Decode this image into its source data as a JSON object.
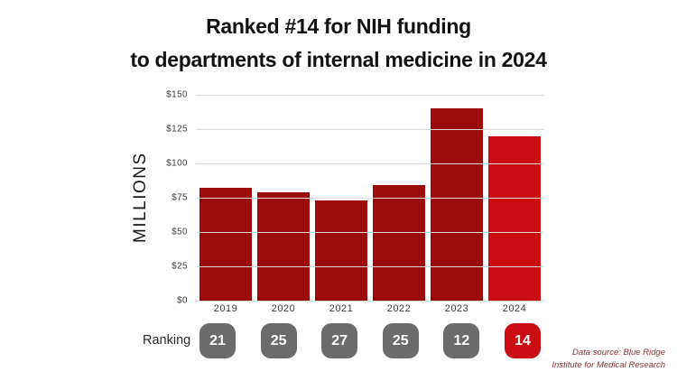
{
  "title": {
    "line1": "Ranked #14 for NIH funding",
    "line2": "to departments of internal medicine in 2024"
  },
  "chart_data": {
    "type": "bar",
    "categories": [
      "2019",
      "2020",
      "2021",
      "2022",
      "2023",
      "2024"
    ],
    "values": [
      82,
      79,
      73,
      84,
      140,
      120
    ],
    "rankings": [
      21,
      25,
      27,
      25,
      12,
      14
    ],
    "title": "Ranked #14 for NIH funding to departments of internal medicine in 2024",
    "xlabel": "",
    "ylabel": "MILLIONS",
    "ylim": [
      0,
      150
    ],
    "yticks": [
      {
        "value": 0,
        "label": "$0"
      },
      {
        "value": 25,
        "label": "$25"
      },
      {
        "value": 50,
        "label": "$50"
      },
      {
        "value": 75,
        "label": "$75"
      },
      {
        "value": 100,
        "label": "$100"
      },
      {
        "value": 125,
        "label": "$125"
      },
      {
        "value": 150,
        "label": "$150"
      }
    ],
    "grid": true,
    "legend": false,
    "highlight_index": 5,
    "bar_color": "#9c0b0b",
    "highlight_color": "#c90d12",
    "badge_color": "#6b6b6b",
    "badge_highlight_color": "#c90d12"
  },
  "ranking": {
    "label": "Ranking"
  },
  "footer": {
    "line1": "Data source: Blue Ridge",
    "line2": "Institute for Medical Research"
  }
}
